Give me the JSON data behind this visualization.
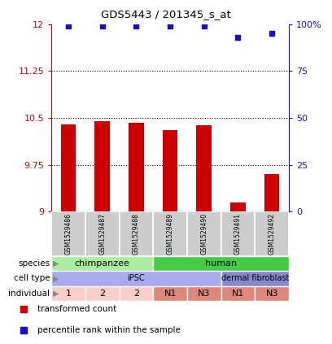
{
  "title": "GDS5443 / 201345_s_at",
  "samples": [
    "GSM1529486",
    "GSM1529487",
    "GSM1529488",
    "GSM1529489",
    "GSM1529490",
    "GSM1529491",
    "GSM1529492"
  ],
  "bar_values": [
    10.4,
    10.45,
    10.42,
    10.3,
    10.38,
    9.15,
    9.6
  ],
  "bar_bottom": 9.0,
  "dot_values": [
    99,
    99,
    99,
    99,
    99,
    93,
    95
  ],
  "ylim_left": [
    9.0,
    12.0
  ],
  "ylim_right": [
    0,
    100
  ],
  "yticks_left": [
    9,
    9.75,
    10.5,
    11.25,
    12
  ],
  "yticks_right": [
    0,
    25,
    50,
    75,
    100
  ],
  "bar_color": "#cc0000",
  "dot_color": "#1111cc",
  "species": [
    {
      "label": "chimpanzee",
      "span": [
        0,
        3
      ],
      "color": "#aaeea0"
    },
    {
      "label": "human",
      "span": [
        3,
        7
      ],
      "color": "#44cc44"
    }
  ],
  "cell_type": [
    {
      "label": "iPSC",
      "span": [
        0,
        5
      ],
      "color": "#aaaaee"
    },
    {
      "label": "dermal fibroblast",
      "span": [
        5,
        7
      ],
      "color": "#8888cc"
    }
  ],
  "individual": [
    {
      "label": "1",
      "span": [
        0,
        1
      ],
      "color": "#f8d0c8"
    },
    {
      "label": "2",
      "span": [
        1,
        2
      ],
      "color": "#f8d0c8"
    },
    {
      "label": "2",
      "span": [
        2,
        3
      ],
      "color": "#f8d0c8"
    },
    {
      "label": "N1",
      "span": [
        3,
        4
      ],
      "color": "#dd8878"
    },
    {
      "label": "N3",
      "span": [
        4,
        5
      ],
      "color": "#dd8878"
    },
    {
      "label": "N1",
      "span": [
        5,
        6
      ],
      "color": "#dd8878"
    },
    {
      "label": "N3",
      "span": [
        6,
        7
      ],
      "color": "#dd8878"
    }
  ],
  "row_labels": [
    "species",
    "cell type",
    "individual"
  ],
  "legend_items": [
    {
      "label": "transformed count",
      "color": "#cc0000"
    },
    {
      "label": "percentile rank within the sample",
      "color": "#1111cc"
    }
  ],
  "background_color": "#ffffff",
  "sample_box_color": "#cccccc",
  "sample_box_edgecolor": "#ffffff"
}
